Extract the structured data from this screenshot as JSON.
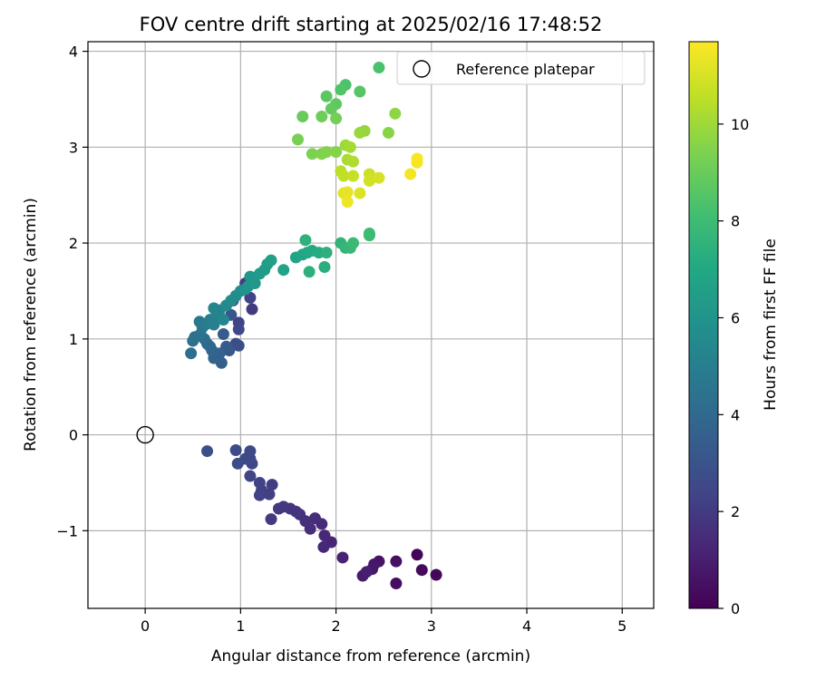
{
  "chart_data": {
    "type": "scatter",
    "title": "FOV centre drift starting at 2025/02/16 17:48:52",
    "xlabel": "Angular distance from reference (arcmin)",
    "ylabel": "Rotation from reference (arcmin)",
    "xlim": [
      -0.6,
      5.33
    ],
    "ylim": [
      -1.81,
      4.1
    ],
    "xticks": [
      0,
      1,
      2,
      3,
      4,
      5
    ],
    "yticks": [
      -1,
      0,
      1,
      2,
      3,
      4
    ],
    "ytick_labels": [
      "−1",
      "0",
      "1",
      "2",
      "3",
      "4"
    ],
    "grid": true,
    "colormap": "viridis",
    "colorbar": {
      "label": "Hours from first FF file",
      "range": [
        0,
        11.7
      ],
      "ticks": [
        0,
        2,
        4,
        6,
        8,
        10
      ]
    },
    "legend": {
      "position": "top-right",
      "entries": [
        {
          "label": "Reference platepar",
          "marker": "open-circle",
          "color": "#000000"
        }
      ]
    },
    "reference_point": {
      "x": 0,
      "y": 0
    },
    "points": [
      {
        "x": 2.85,
        "y": -1.25,
        "h": 0.1
      },
      {
        "x": 3.05,
        "y": -1.46,
        "h": 0.2
      },
      {
        "x": 2.9,
        "y": -1.41,
        "h": 0.3
      },
      {
        "x": 2.63,
        "y": -1.55,
        "h": 0.4
      },
      {
        "x": 2.63,
        "y": -1.32,
        "h": 0.5
      },
      {
        "x": 2.45,
        "y": -1.32,
        "h": 0.6
      },
      {
        "x": 2.4,
        "y": -1.35,
        "h": 0.7
      },
      {
        "x": 2.38,
        "y": -1.4,
        "h": 0.8
      },
      {
        "x": 2.28,
        "y": -1.47,
        "h": 0.9
      },
      {
        "x": 2.32,
        "y": -1.43,
        "h": 1.0
      },
      {
        "x": 2.07,
        "y": -1.28,
        "h": 1.1
      },
      {
        "x": 1.95,
        "y": -1.12,
        "h": 1.2
      },
      {
        "x": 1.87,
        "y": -1.17,
        "h": 1.3
      },
      {
        "x": 1.88,
        "y": -1.05,
        "h": 1.35
      },
      {
        "x": 1.85,
        "y": -0.93,
        "h": 1.4
      },
      {
        "x": 1.78,
        "y": -0.87,
        "h": 1.5
      },
      {
        "x": 1.73,
        "y": -0.98,
        "h": 1.55
      },
      {
        "x": 1.68,
        "y": -0.9,
        "h": 1.6
      },
      {
        "x": 1.62,
        "y": -0.83,
        "h": 1.7
      },
      {
        "x": 1.58,
        "y": -0.8,
        "h": 1.75
      },
      {
        "x": 1.52,
        "y": -0.77,
        "h": 1.8
      },
      {
        "x": 1.45,
        "y": -0.75,
        "h": 1.9
      },
      {
        "x": 1.4,
        "y": -0.77,
        "h": 1.95
      },
      {
        "x": 1.32,
        "y": -0.88,
        "h": 2.0
      },
      {
        "x": 1.33,
        "y": -0.52,
        "h": 2.1
      },
      {
        "x": 1.3,
        "y": -0.62,
        "h": 2.15
      },
      {
        "x": 1.22,
        "y": -0.58,
        "h": 2.2
      },
      {
        "x": 1.2,
        "y": -0.63,
        "h": 2.25
      },
      {
        "x": 1.2,
        "y": -0.5,
        "h": 2.3
      },
      {
        "x": 1.1,
        "y": -0.43,
        "h": 2.4
      },
      {
        "x": 1.12,
        "y": -0.3,
        "h": 2.45
      },
      {
        "x": 1.1,
        "y": -0.25,
        "h": 2.5
      },
      {
        "x": 1.1,
        "y": -0.17,
        "h": 2.55
      },
      {
        "x": 1.05,
        "y": -0.25,
        "h": 2.6
      },
      {
        "x": 0.97,
        "y": -0.3,
        "h": 2.65
      },
      {
        "x": 0.95,
        "y": -0.16,
        "h": 2.7
      },
      {
        "x": 0.65,
        "y": -0.17,
        "h": 2.8
      },
      {
        "x": 1.12,
        "y": 1.31,
        "h": 2.0
      },
      {
        "x": 1.05,
        "y": 1.58,
        "h": 2.1
      },
      {
        "x": 1.1,
        "y": 1.43,
        "h": 2.3
      },
      {
        "x": 0.98,
        "y": 1.17,
        "h": 2.4
      },
      {
        "x": 0.98,
        "y": 1.1,
        "h": 2.5
      },
      {
        "x": 0.95,
        "y": 0.95,
        "h": 2.7
      },
      {
        "x": 0.98,
        "y": 0.93,
        "h": 2.8
      },
      {
        "x": 0.92,
        "y": 1.4,
        "h": 3.0
      },
      {
        "x": 0.9,
        "y": 1.25,
        "h": 3.1
      },
      {
        "x": 0.88,
        "y": 0.88,
        "h": 3.2
      },
      {
        "x": 0.85,
        "y": 0.92,
        "h": 3.3
      },
      {
        "x": 0.82,
        "y": 1.05,
        "h": 3.4
      },
      {
        "x": 0.8,
        "y": 0.75,
        "h": 3.5
      },
      {
        "x": 0.78,
        "y": 0.85,
        "h": 3.6
      },
      {
        "x": 0.72,
        "y": 0.8,
        "h": 3.7
      },
      {
        "x": 0.7,
        "y": 0.88,
        "h": 3.8
      },
      {
        "x": 0.68,
        "y": 0.92,
        "h": 3.9
      },
      {
        "x": 0.65,
        "y": 0.95,
        "h": 4.0
      },
      {
        "x": 0.62,
        "y": 1.0,
        "h": 4.1
      },
      {
        "x": 0.48,
        "y": 0.85,
        "h": 4.2
      },
      {
        "x": 0.5,
        "y": 0.98,
        "h": 4.3
      },
      {
        "x": 0.52,
        "y": 1.02,
        "h": 4.4
      },
      {
        "x": 0.58,
        "y": 1.05,
        "h": 4.5
      },
      {
        "x": 0.6,
        "y": 1.12,
        "h": 4.6
      },
      {
        "x": 0.57,
        "y": 1.18,
        "h": 4.7
      },
      {
        "x": 0.63,
        "y": 1.15,
        "h": 4.8
      },
      {
        "x": 0.68,
        "y": 1.2,
        "h": 4.9
      },
      {
        "x": 0.72,
        "y": 1.15,
        "h": 5.0
      },
      {
        "x": 0.75,
        "y": 1.25,
        "h": 5.1
      },
      {
        "x": 0.78,
        "y": 1.3,
        "h": 5.2
      },
      {
        "x": 0.72,
        "y": 1.32,
        "h": 5.3
      },
      {
        "x": 0.82,
        "y": 1.2,
        "h": 5.4
      },
      {
        "x": 0.85,
        "y": 1.35,
        "h": 5.5
      },
      {
        "x": 0.9,
        "y": 1.4,
        "h": 5.6
      },
      {
        "x": 0.95,
        "y": 1.45,
        "h": 5.7
      },
      {
        "x": 1.0,
        "y": 1.5,
        "h": 5.8
      },
      {
        "x": 1.05,
        "y": 1.52,
        "h": 5.9
      },
      {
        "x": 1.08,
        "y": 1.55,
        "h": 6.0
      },
      {
        "x": 1.1,
        "y": 1.65,
        "h": 6.1
      },
      {
        "x": 1.15,
        "y": 1.58,
        "h": 6.2
      },
      {
        "x": 1.2,
        "y": 1.68,
        "h": 6.3
      },
      {
        "x": 1.25,
        "y": 1.72,
        "h": 6.4
      },
      {
        "x": 1.28,
        "y": 1.78,
        "h": 6.5
      },
      {
        "x": 1.32,
        "y": 1.82,
        "h": 6.6
      },
      {
        "x": 1.45,
        "y": 1.72,
        "h": 6.7
      },
      {
        "x": 1.58,
        "y": 1.85,
        "h": 6.8
      },
      {
        "x": 1.65,
        "y": 1.88,
        "h": 6.9
      },
      {
        "x": 1.7,
        "y": 1.9,
        "h": 7.0
      },
      {
        "x": 1.75,
        "y": 1.92,
        "h": 7.1
      },
      {
        "x": 1.82,
        "y": 1.9,
        "h": 7.2
      },
      {
        "x": 1.88,
        "y": 1.75,
        "h": 7.3
      },
      {
        "x": 1.9,
        "y": 1.9,
        "h": 7.4
      },
      {
        "x": 1.72,
        "y": 1.7,
        "h": 7.45
      },
      {
        "x": 1.68,
        "y": 2.03,
        "h": 7.5
      },
      {
        "x": 2.05,
        "y": 2.0,
        "h": 7.6
      },
      {
        "x": 2.1,
        "y": 1.95,
        "h": 7.7
      },
      {
        "x": 2.15,
        "y": 1.95,
        "h": 7.8
      },
      {
        "x": 2.18,
        "y": 2.0,
        "h": 7.9
      },
      {
        "x": 2.35,
        "y": 2.08,
        "h": 7.95
      },
      {
        "x": 2.35,
        "y": 2.1,
        "h": 8.0
      },
      {
        "x": 2.45,
        "y": 3.83,
        "h": 8.3
      },
      {
        "x": 2.1,
        "y": 3.65,
        "h": 8.4
      },
      {
        "x": 2.05,
        "y": 3.6,
        "h": 8.5
      },
      {
        "x": 2.25,
        "y": 3.58,
        "h": 8.6
      },
      {
        "x": 1.9,
        "y": 3.53,
        "h": 8.7
      },
      {
        "x": 2.0,
        "y": 3.45,
        "h": 8.8
      },
      {
        "x": 1.95,
        "y": 3.4,
        "h": 8.9
      },
      {
        "x": 1.65,
        "y": 3.32,
        "h": 9.0
      },
      {
        "x": 1.85,
        "y": 3.32,
        "h": 9.1
      },
      {
        "x": 2.0,
        "y": 3.3,
        "h": 9.2
      },
      {
        "x": 1.6,
        "y": 3.08,
        "h": 9.3
      },
      {
        "x": 1.75,
        "y": 2.93,
        "h": 9.4
      },
      {
        "x": 1.85,
        "y": 2.93,
        "h": 9.45
      },
      {
        "x": 1.9,
        "y": 2.95,
        "h": 9.5
      },
      {
        "x": 2.0,
        "y": 2.95,
        "h": 9.55
      },
      {
        "x": 2.55,
        "y": 3.15,
        "h": 9.6
      },
      {
        "x": 2.62,
        "y": 3.35,
        "h": 9.7
      },
      {
        "x": 2.3,
        "y": 3.17,
        "h": 9.8
      },
      {
        "x": 2.25,
        "y": 3.15,
        "h": 9.9
      },
      {
        "x": 2.1,
        "y": 3.02,
        "h": 10.0
      },
      {
        "x": 2.15,
        "y": 3.0,
        "h": 10.1
      },
      {
        "x": 2.12,
        "y": 2.87,
        "h": 10.2
      },
      {
        "x": 2.18,
        "y": 2.85,
        "h": 10.3
      },
      {
        "x": 2.05,
        "y": 2.75,
        "h": 10.5
      },
      {
        "x": 2.08,
        "y": 2.7,
        "h": 10.6
      },
      {
        "x": 2.18,
        "y": 2.7,
        "h": 10.7
      },
      {
        "x": 2.35,
        "y": 2.72,
        "h": 10.8
      },
      {
        "x": 2.35,
        "y": 2.65,
        "h": 10.9
      },
      {
        "x": 2.45,
        "y": 2.68,
        "h": 11.0
      },
      {
        "x": 2.25,
        "y": 2.52,
        "h": 11.1
      },
      {
        "x": 2.08,
        "y": 2.52,
        "h": 11.2
      },
      {
        "x": 2.12,
        "y": 2.53,
        "h": 11.3
      },
      {
        "x": 2.12,
        "y": 2.43,
        "h": 11.4
      },
      {
        "x": 2.78,
        "y": 2.72,
        "h": 11.5
      },
      {
        "x": 2.85,
        "y": 2.84,
        "h": 11.55
      },
      {
        "x": 2.85,
        "y": 2.88,
        "h": 11.6
      }
    ]
  }
}
